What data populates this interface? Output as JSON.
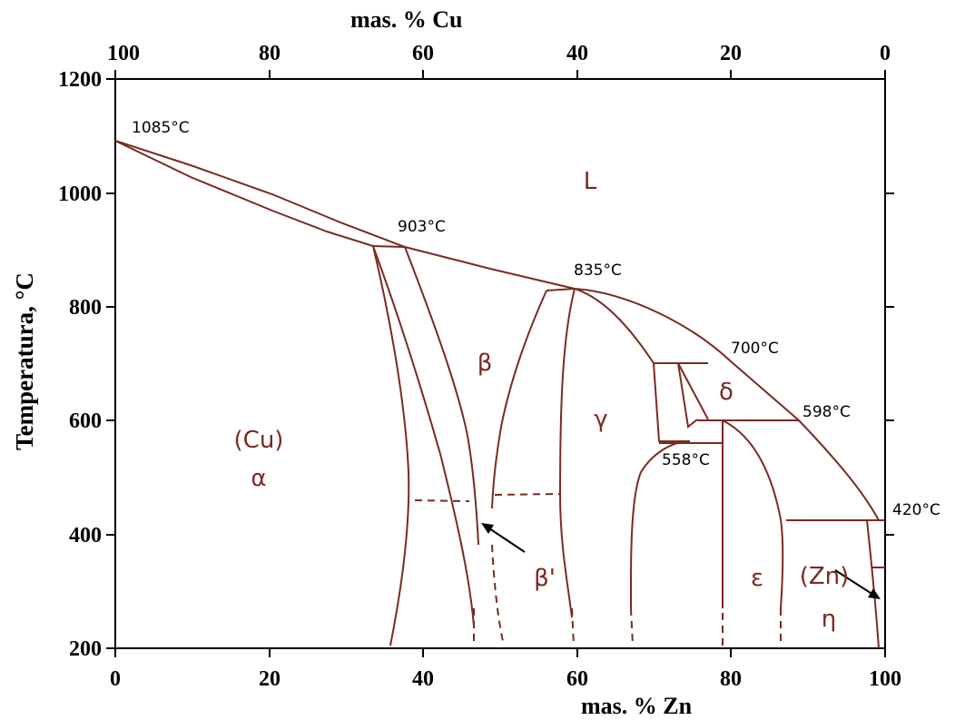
{
  "axes": {
    "top_title": "mas. % Cu",
    "bottom_title": "mas. % Zn",
    "left_title": "Temperatura, °C",
    "top_ticks": [
      "100",
      "80",
      "60",
      "40",
      "20",
      "0"
    ],
    "bottom_ticks": [
      "0",
      "20",
      "40",
      "60",
      "80",
      "100"
    ],
    "left_ticks": [
      "1200",
      "1000",
      "800",
      "600",
      "400",
      "200"
    ]
  },
  "phases": {
    "liquid": "L",
    "cu_name": "(Cu)",
    "alpha": "α",
    "beta": "β",
    "beta_prime": "β'",
    "gamma": "γ",
    "delta": "δ",
    "epsilon": "ε",
    "zn_name": "(Zn)",
    "eta": "η"
  },
  "temperatures": {
    "cu_melting": "1085°C",
    "t903": "903°C",
    "t835": "835°C",
    "t700": "700°C",
    "t598": "598°C",
    "t558": "558°C",
    "t420": "420°C"
  },
  "colors": {
    "phase_lines": "#7a2a22",
    "axes": "#000000"
  }
}
